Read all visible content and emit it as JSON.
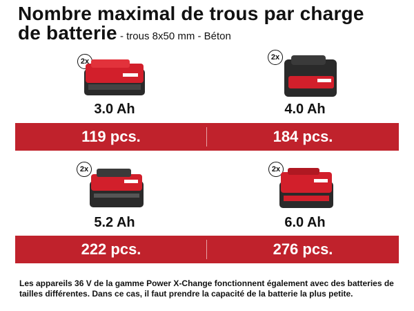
{
  "title": {
    "line1": "Nombre maximal de trous par charge",
    "line2": "de batterie",
    "subtitle": " - trous 8x50 mm - Béton"
  },
  "batteries": [
    {
      "capacity": "3.0 Ah",
      "count": "2x",
      "result": "119 pcs."
    },
    {
      "capacity": "4.0 Ah",
      "count": "2x",
      "result": "184 pcs."
    },
    {
      "capacity": "5.2 Ah",
      "count": "2x",
      "result": "222 pcs."
    },
    {
      "capacity": "6.0 Ah",
      "count": "2x",
      "result": "276 pcs."
    }
  ],
  "note": "Les appareils 36 V de la gamme Power X-Change fonctionnent également avec des batteries de tailles différentes. Dans ce cas, il faut prendre la capacité de la batterie la plus petite.",
  "colors": {
    "band": "#c0222c",
    "battery_red": "#d21f2b",
    "battery_dark": "#2a2a2a"
  }
}
